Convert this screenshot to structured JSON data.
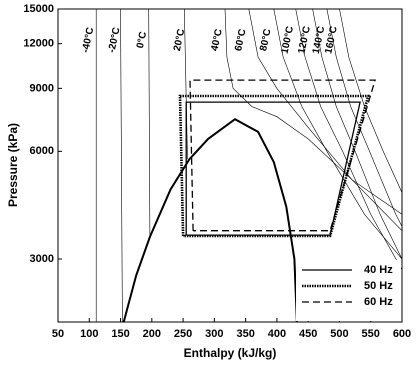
{
  "chart_data": {
    "type": "line",
    "x_label": "Enthalpy (kJ/kg)",
    "y_label": "Pressure (kPa)",
    "xlim": [
      50,
      600
    ],
    "ylim": [
      2000,
      15000
    ],
    "log_y": true,
    "xticks": [
      50,
      100,
      150,
      200,
      250,
      300,
      350,
      400,
      450,
      500,
      550,
      600
    ],
    "yticks": [
      3000,
      6000,
      9000,
      12000,
      15000
    ],
    "legend": "lower right",
    "series": [
      {
        "name": "40 Hz",
        "color": "#000000",
        "dash": "solid",
        "x": [
          255,
          255,
          533,
          485,
          255
        ],
        "values": [
          3500,
          8240,
          8240,
          3500,
          3500
        ]
      },
      {
        "name": "50 Hz",
        "color": "#000000",
        "dash": "dotted",
        "x": [
          250,
          245,
          546,
          485,
          250
        ],
        "values": [
          3480,
          8570,
          8570,
          3480,
          3480
        ]
      },
      {
        "name": "60 Hz",
        "color": "#000000",
        "dash": "dashed",
        "x": [
          266,
          261,
          557,
          485,
          266
        ],
        "values": [
          3600,
          9490,
          9490,
          3600,
          3600
        ]
      }
    ],
    "saturation_dome": {
      "x": [
        155,
        175,
        197,
        230,
        260,
        290,
        333,
        370,
        395,
        415,
        428,
        432
      ],
      "values": [
        2000,
        2700,
        3460,
        4700,
        5700,
        6500,
        7377,
        6800,
        5600,
        4200,
        3000,
        2000
      ]
    },
    "isotherms": [
      {
        "label": "-40°C",
        "x": [
          111,
          111
        ],
        "values": [
          2000,
          15000
        ]
      },
      {
        "label": "-20°C",
        "x": [
          153,
          150
        ],
        "values": [
          2000,
          15000
        ]
      },
      {
        "label": "0°C",
        "x": [
          197,
          195
        ],
        "values": [
          3460,
          15000
        ]
      },
      {
        "label": "20°C",
        "x": [
          257,
          252
        ],
        "values": [
          5700,
          15000
        ]
      },
      {
        "label": "40°C",
        "x": [
          317,
          320,
          330,
          360,
          400,
          450,
          520,
          600
        ],
        "values": [
          15000,
          11000,
          9000,
          8000,
          7500,
          6500,
          5000,
          4000
        ]
      },
      {
        "label": "60°C",
        "x": [
          355,
          370,
          400,
          450,
          520,
          600
        ],
        "values": [
          15000,
          11000,
          9000,
          7000,
          5000,
          3600
        ]
      },
      {
        "label": "80°C",
        "x": [
          395,
          410,
          440,
          480,
          540,
          600
        ],
        "values": [
          15000,
          11000,
          8000,
          6000,
          4000,
          3000
        ]
      },
      {
        "label": "100°C",
        "x": [
          430,
          445,
          470,
          505,
          550,
          600
        ],
        "values": [
          15000,
          11000,
          8000,
          6000,
          4000,
          2800
        ]
      },
      {
        "label": "120°C",
        "x": [
          457,
          472,
          495,
          525,
          565,
          600
        ],
        "values": [
          15000,
          11000,
          8000,
          6000,
          4000,
          3000
        ]
      },
      {
        "label": "140°C",
        "x": [
          480,
          495,
          518,
          548,
          590,
          600
        ],
        "values": [
          15000,
          11000,
          8000,
          6000,
          4000,
          3700
        ]
      },
      {
        "label": "160°C",
        "x": [
          500,
          515,
          540,
          570,
          600
        ],
        "values": [
          15000,
          11000,
          8000,
          6000,
          4600
        ]
      }
    ]
  }
}
